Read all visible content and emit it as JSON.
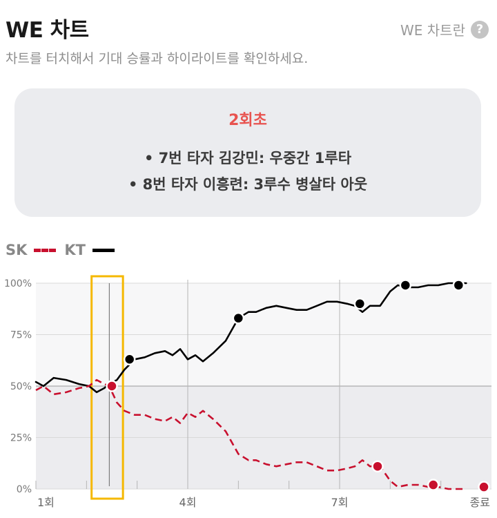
{
  "header": {
    "title": "WE 차트",
    "help_label": "WE 차트란",
    "help_icon": "question-circle-icon"
  },
  "subtitle": "차트를 터치해서 기대 승률과 하이라이트를 확인하세요.",
  "card": {
    "inning": "2회초",
    "events": [
      "• 7번 타자 김강민: 우중간 1루타",
      "• 8번 타자 이흥련: 3루수 병살타 아웃"
    ]
  },
  "legend": [
    {
      "name": "SK",
      "color": "#c8102e",
      "style": "dashed"
    },
    {
      "name": "KT",
      "color": "#000000",
      "style": "solid"
    }
  ],
  "chart_data": {
    "type": "line",
    "title": "",
    "xlabel": "",
    "ylabel": "",
    "ylim": [
      0,
      100
    ],
    "y_ticks": [
      "0%",
      "25%",
      "50%",
      "75%",
      "100%"
    ],
    "x_ticks": [
      "1회",
      "4회",
      "7회",
      "종료"
    ],
    "selected_inning": "2회초",
    "series": [
      {
        "name": "KT",
        "color": "#000000",
        "style": "solid",
        "points": [
          [
            1.0,
            52
          ],
          [
            1.15,
            50
          ],
          [
            1.35,
            54
          ],
          [
            1.6,
            53
          ],
          [
            1.85,
            51
          ],
          [
            2.05,
            50
          ],
          [
            2.2,
            47
          ],
          [
            2.35,
            49
          ],
          [
            2.45,
            51
          ],
          [
            2.6,
            53
          ],
          [
            2.75,
            58
          ],
          [
            2.95,
            63
          ],
          [
            3.15,
            64
          ],
          [
            3.35,
            66
          ],
          [
            3.55,
            67
          ],
          [
            3.7,
            65
          ],
          [
            3.85,
            68
          ],
          [
            4.0,
            63
          ],
          [
            4.15,
            65
          ],
          [
            4.3,
            62
          ],
          [
            4.5,
            66
          ],
          [
            4.75,
            72
          ],
          [
            5.0,
            83
          ],
          [
            5.2,
            86
          ],
          [
            5.35,
            86
          ],
          [
            5.55,
            88
          ],
          [
            5.75,
            89
          ],
          [
            5.95,
            88
          ],
          [
            6.15,
            87
          ],
          [
            6.35,
            87
          ],
          [
            6.55,
            89
          ],
          [
            6.75,
            91
          ],
          [
            6.95,
            91
          ],
          [
            7.15,
            90
          ],
          [
            7.3,
            89
          ],
          [
            7.45,
            86
          ],
          [
            7.6,
            89
          ],
          [
            7.8,
            89
          ],
          [
            8.0,
            96
          ],
          [
            8.15,
            99
          ],
          [
            8.35,
            98
          ],
          [
            8.55,
            98
          ],
          [
            8.75,
            99
          ],
          [
            8.95,
            99
          ],
          [
            9.15,
            100
          ],
          [
            9.35,
            100
          ],
          [
            9.5,
            100
          ]
        ]
      },
      {
        "name": "SK",
        "color": "#c8102e",
        "style": "dashed",
        "points": [
          [
            1.0,
            48
          ],
          [
            1.15,
            50
          ],
          [
            1.35,
            46
          ],
          [
            1.6,
            47
          ],
          [
            1.85,
            49
          ],
          [
            2.05,
            50
          ],
          [
            2.2,
            53
          ],
          [
            2.35,
            51
          ],
          [
            2.45,
            50
          ],
          [
            2.6,
            42
          ],
          [
            2.75,
            38
          ],
          [
            2.95,
            36
          ],
          [
            3.15,
            36
          ],
          [
            3.35,
            34
          ],
          [
            3.55,
            33
          ],
          [
            3.7,
            35
          ],
          [
            3.85,
            32
          ],
          [
            4.0,
            37
          ],
          [
            4.15,
            35
          ],
          [
            4.3,
            38
          ],
          [
            4.5,
            34
          ],
          [
            4.75,
            28
          ],
          [
            5.0,
            17
          ],
          [
            5.2,
            14
          ],
          [
            5.35,
            14
          ],
          [
            5.55,
            12
          ],
          [
            5.75,
            11
          ],
          [
            5.95,
            12
          ],
          [
            6.15,
            13
          ],
          [
            6.35,
            13
          ],
          [
            6.55,
            11
          ],
          [
            6.75,
            9
          ],
          [
            6.95,
            9
          ],
          [
            7.15,
            10
          ],
          [
            7.3,
            11
          ],
          [
            7.45,
            14
          ],
          [
            7.6,
            11
          ],
          [
            7.8,
            11
          ],
          [
            8.0,
            4
          ],
          [
            8.15,
            1
          ],
          [
            8.35,
            2
          ],
          [
            8.55,
            2
          ],
          [
            8.75,
            1
          ],
          [
            8.95,
            1
          ],
          [
            9.15,
            0
          ],
          [
            9.35,
            0
          ],
          [
            9.5,
            0
          ]
        ]
      }
    ],
    "markers": {
      "SK": [
        [
          2.5,
          50
        ],
        [
          7.75,
          11
        ],
        [
          8.85,
          2
        ],
        [
          9.85,
          1
        ]
      ],
      "KT": [
        [
          2.85,
          63
        ],
        [
          5.0,
          83
        ],
        [
          7.4,
          90
        ],
        [
          8.3,
          99
        ],
        [
          9.35,
          99
        ]
      ]
    }
  }
}
